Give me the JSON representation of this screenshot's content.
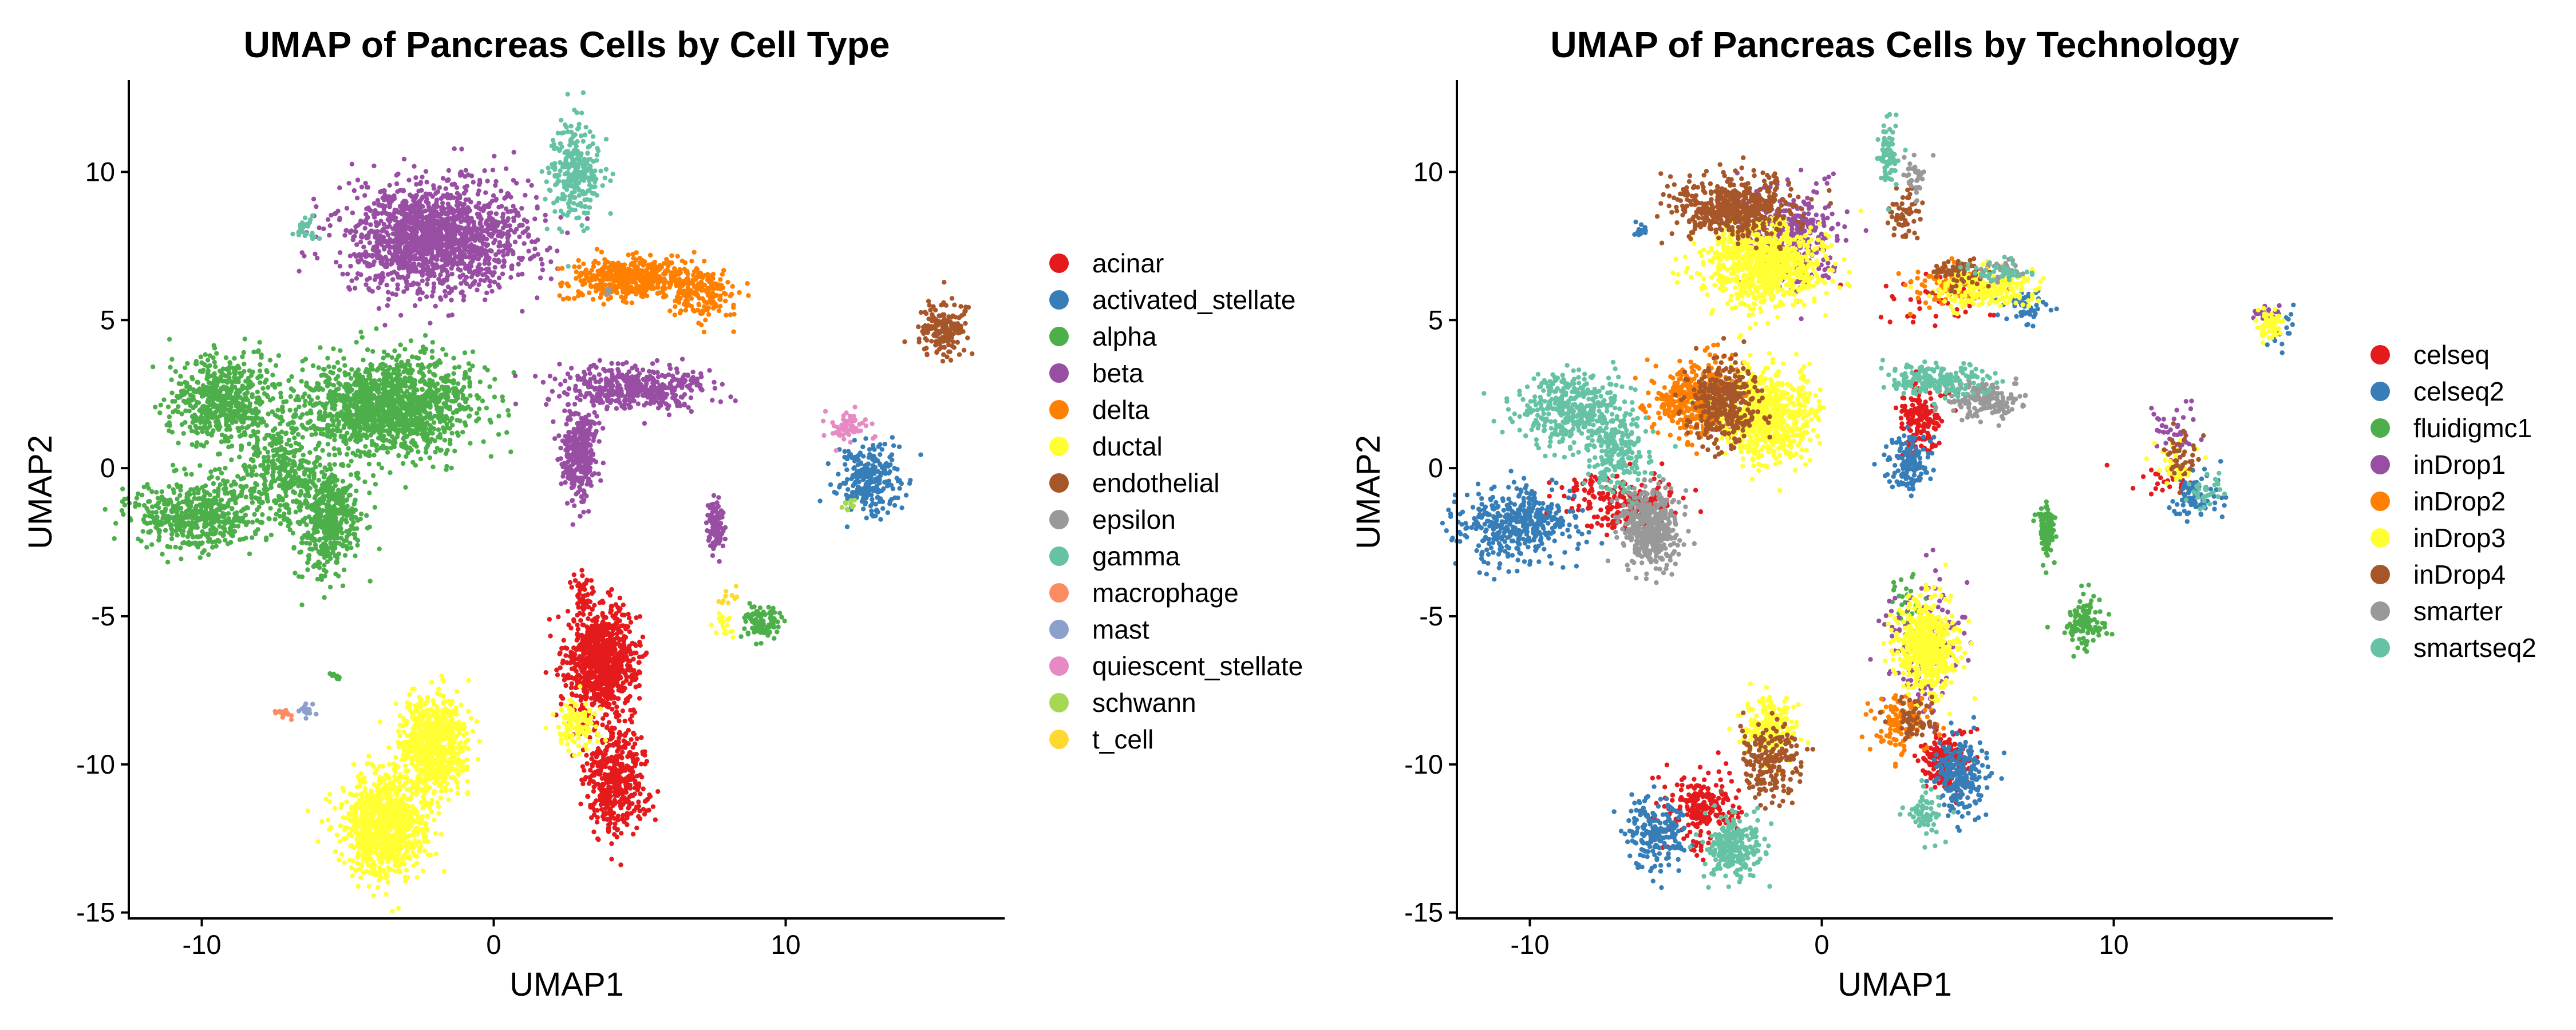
{
  "chart_data": [
    {
      "type": "scatter",
      "title": "UMAP of Pancreas Cells by Cell Type",
      "xlabel": "UMAP1",
      "ylabel": "UMAP2",
      "xlim": [
        -12.5,
        17.5
      ],
      "ylim": [
        -15.2,
        13.1
      ],
      "xticks": [
        -10,
        0,
        10
      ],
      "yticks": [
        -15,
        -10,
        -5,
        0,
        5,
        10
      ],
      "grid": false,
      "legend_placement": "right",
      "series": [
        {
          "name": "acinar",
          "color": "#E41A1C",
          "clusters": [
            {
              "x": 3.7,
              "y": -6.5,
              "sx": 0.6,
              "sy": 0.9,
              "n": 900
            },
            {
              "x": 4.2,
              "y": -10.5,
              "sx": 0.55,
              "sy": 0.9,
              "n": 450
            },
            {
              "x": 3.0,
              "y": -4.2,
              "sx": 0.2,
              "sy": 0.35,
              "n": 40
            }
          ]
        },
        {
          "name": "activated_stellate",
          "color": "#377EB8",
          "clusters": [
            {
              "x": 12.9,
              "y": -0.4,
              "sx": 0.55,
              "sy": 0.6,
              "n": 260
            }
          ]
        },
        {
          "name": "alpha",
          "color": "#4DAF4A",
          "clusters": [
            {
              "x": -3.6,
              "y": 2.1,
              "sx": 1.4,
              "sy": 0.8,
              "n": 1400
            },
            {
              "x": -9.3,
              "y": 2.3,
              "sx": 0.9,
              "sy": 0.7,
              "n": 550
            },
            {
              "x": -7.4,
              "y": 0.1,
              "sx": 0.8,
              "sy": 1.0,
              "n": 350
            },
            {
              "x": -10.2,
              "y": -1.6,
              "sx": 1.0,
              "sy": 0.6,
              "n": 500
            },
            {
              "x": -5.7,
              "y": -1.7,
              "sx": 0.6,
              "sy": 0.9,
              "n": 500
            },
            {
              "x": 9.2,
              "y": -5.2,
              "sx": 0.3,
              "sy": 0.3,
              "n": 100
            },
            {
              "x": -5.4,
              "y": -7.0,
              "sx": 0.08,
              "sy": 0.08,
              "n": 10
            }
          ]
        },
        {
          "name": "beta",
          "color": "#984EA3",
          "clusters": [
            {
              "x": -2.0,
              "y": 7.8,
              "sx": 1.5,
              "sy": 0.9,
              "n": 1600
            },
            {
              "x": 4.8,
              "y": 2.7,
              "sx": 1.3,
              "sy": 0.35,
              "n": 450
            },
            {
              "x": 2.9,
              "y": 0.5,
              "sx": 0.3,
              "sy": 0.8,
              "n": 350
            },
            {
              "x": 7.6,
              "y": -1.9,
              "sx": 0.15,
              "sy": 0.45,
              "n": 100
            }
          ]
        },
        {
          "name": "delta",
          "color": "#FF7F00",
          "clusters": [
            {
              "x": 4.9,
              "y": 6.4,
              "sx": 1.1,
              "sy": 0.35,
              "n": 500
            },
            {
              "x": 7.2,
              "y": 5.9,
              "sx": 0.6,
              "sy": 0.5,
              "n": 150
            }
          ]
        },
        {
          "name": "ductal",
          "color": "#FFFF33",
          "clusters": [
            {
              "x": -3.7,
              "y": -12.1,
              "sx": 0.75,
              "sy": 0.9,
              "n": 950
            },
            {
              "x": -2.1,
              "y": -9.3,
              "sx": 0.55,
              "sy": 0.8,
              "n": 700
            },
            {
              "x": 2.8,
              "y": -8.6,
              "sx": 0.4,
              "sy": 0.4,
              "n": 120
            },
            {
              "x": 7.8,
              "y": -5.3,
              "sx": 0.2,
              "sy": 0.2,
              "n": 20
            }
          ]
        },
        {
          "name": "endothelial",
          "color": "#A65628",
          "clusters": [
            {
              "x": 15.4,
              "y": 4.7,
              "sx": 0.45,
              "sy": 0.45,
              "n": 180
            }
          ]
        },
        {
          "name": "epsilon",
          "color": "#999999",
          "clusters": [
            {
              "x": 3.9,
              "y": 6.0,
              "sx": 0.1,
              "sy": 0.1,
              "n": 6
            }
          ]
        },
        {
          "name": "gamma",
          "color": "#66C2A5",
          "clusters": [
            {
              "x": 2.8,
              "y": 10.0,
              "sx": 0.45,
              "sy": 0.8,
              "n": 280
            },
            {
              "x": -6.4,
              "y": 8.1,
              "sx": 0.25,
              "sy": 0.2,
              "n": 30
            }
          ]
        },
        {
          "name": "macrophage",
          "color": "#FC8D62",
          "clusters": [
            {
              "x": -7.2,
              "y": -8.3,
              "sx": 0.15,
              "sy": 0.1,
              "n": 15
            }
          ]
        },
        {
          "name": "mast",
          "color": "#8DA0CB",
          "clusters": [
            {
              "x": -6.4,
              "y": -8.2,
              "sx": 0.15,
              "sy": 0.15,
              "n": 15
            }
          ]
        },
        {
          "name": "quiescent_stellate",
          "color": "#E78AC3",
          "clusters": [
            {
              "x": 12.2,
              "y": 1.4,
              "sx": 0.35,
              "sy": 0.25,
              "n": 60
            }
          ]
        },
        {
          "name": "schwann",
          "color": "#A6D854",
          "clusters": [
            {
              "x": 12.2,
              "y": -1.2,
              "sx": 0.15,
              "sy": 0.1,
              "n": 12
            }
          ]
        },
        {
          "name": "t_cell",
          "color": "#FFD92F",
          "clusters": [
            {
              "x": 8.0,
              "y": -4.4,
              "sx": 0.15,
              "sy": 0.15,
              "n": 10
            }
          ]
        }
      ]
    },
    {
      "type": "scatter",
      "title": "UMAP of Pancreas Cells by Technology",
      "xlabel": "UMAP1",
      "ylabel": "UMAP2",
      "xlim": [
        -12.5,
        17.5
      ],
      "ylim": [
        -15.2,
        13.1
      ],
      "xticks": [
        -10,
        0,
        10
      ],
      "yticks": [
        -15,
        -10,
        -5,
        0,
        5,
        10
      ],
      "grid": false,
      "legend_placement": "right",
      "series": [
        {
          "name": "celseq",
          "color": "#E41A1C",
          "clusters": [
            {
              "x": -6.9,
              "y": -1.1,
              "sx": 1.0,
              "sy": 0.5,
              "n": 220
            },
            {
              "x": 3.4,
              "y": 1.6,
              "sx": 0.35,
              "sy": 0.6,
              "n": 150
            },
            {
              "x": -4.1,
              "y": -11.5,
              "sx": 0.6,
              "sy": 0.6,
              "n": 220
            },
            {
              "x": 4.2,
              "y": -9.9,
              "sx": 0.4,
              "sy": 0.5,
              "n": 200
            },
            {
              "x": 11.6,
              "y": -0.4,
              "sx": 0.6,
              "sy": 0.4,
              "n": 30
            },
            {
              "x": 3.8,
              "y": 5.7,
              "sx": 1.6,
              "sy": 0.4,
              "n": 45
            }
          ]
        },
        {
          "name": "celseq2",
          "color": "#377EB8",
          "clusters": [
            {
              "x": -10.4,
              "y": -1.9,
              "sx": 1.0,
              "sy": 0.6,
              "n": 420
            },
            {
              "x": 3.0,
              "y": 0.1,
              "sx": 0.35,
              "sy": 0.5,
              "n": 150
            },
            {
              "x": -5.7,
              "y": -12.3,
              "sx": 0.5,
              "sy": 0.6,
              "n": 200
            },
            {
              "x": 4.7,
              "y": -10.4,
              "sx": 0.45,
              "sy": 0.7,
              "n": 220
            },
            {
              "x": 12.8,
              "y": -0.9,
              "sx": 0.4,
              "sy": 0.4,
              "n": 80
            },
            {
              "x": 7.0,
              "y": 5.5,
              "sx": 0.5,
              "sy": 0.3,
              "n": 50
            },
            {
              "x": -6.3,
              "y": 8.1,
              "sx": 0.15,
              "sy": 0.15,
              "n": 15
            },
            {
              "x": 15.6,
              "y": 4.6,
              "sx": 0.3,
              "sy": 0.3,
              "n": 20
            }
          ]
        },
        {
          "name": "fluidigmc1",
          "color": "#4DAF4A",
          "clusters": [
            {
              "x": 7.7,
              "y": -2.0,
              "sx": 0.12,
              "sy": 0.5,
              "n": 110
            },
            {
              "x": 9.0,
              "y": -5.2,
              "sx": 0.35,
              "sy": 0.4,
              "n": 110
            },
            {
              "x": 3.0,
              "y": -4.4,
              "sx": 0.3,
              "sy": 0.5,
              "n": 30
            }
          ]
        },
        {
          "name": "inDrop1",
          "color": "#984EA3",
          "clusters": [
            {
              "x": -1.0,
              "y": 7.8,
              "sx": 0.8,
              "sy": 0.8,
              "n": 350
            },
            {
              "x": 3.6,
              "y": -6.0,
              "sx": 0.6,
              "sy": 1.0,
              "n": 160
            },
            {
              "x": 12.2,
              "y": 1.4,
              "sx": 0.4,
              "sy": 0.4,
              "n": 40
            },
            {
              "x": 15.2,
              "y": 5.2,
              "sx": 0.3,
              "sy": 0.2,
              "n": 20
            }
          ]
        },
        {
          "name": "inDrop2",
          "color": "#FF7F00",
          "clusters": [
            {
              "x": -4.2,
              "y": 2.3,
              "sx": 0.8,
              "sy": 0.6,
              "n": 500
            },
            {
              "x": 2.7,
              "y": -8.5,
              "sx": 0.5,
              "sy": 0.5,
              "n": 120
            },
            {
              "x": 4.3,
              "y": 6.2,
              "sx": 0.7,
              "sy": 0.35,
              "n": 100
            }
          ]
        },
        {
          "name": "inDrop3",
          "color": "#FFFF33",
          "clusters": [
            {
              "x": -2.0,
              "y": 6.9,
              "sx": 1.0,
              "sy": 0.7,
              "n": 900
            },
            {
              "x": -1.9,
              "y": 1.8,
              "sx": 0.8,
              "sy": 0.8,
              "n": 700
            },
            {
              "x": 3.6,
              "y": -6.0,
              "sx": 0.5,
              "sy": 0.8,
              "n": 600
            },
            {
              "x": -1.8,
              "y": -8.7,
              "sx": 0.4,
              "sy": 0.5,
              "n": 200
            },
            {
              "x": 5.5,
              "y": 6.1,
              "sx": 0.8,
              "sy": 0.35,
              "n": 250
            },
            {
              "x": 12.0,
              "y": 0.1,
              "sx": 0.35,
              "sy": 0.4,
              "n": 40
            },
            {
              "x": 15.3,
              "y": 4.8,
              "sx": 0.25,
              "sy": 0.3,
              "n": 60
            }
          ]
        },
        {
          "name": "inDrop4",
          "color": "#A65628",
          "clusters": [
            {
              "x": -3.0,
              "y": 8.8,
              "sx": 1.0,
              "sy": 0.5,
              "n": 500
            },
            {
              "x": -3.4,
              "y": 2.2,
              "sx": 0.6,
              "sy": 0.7,
              "n": 350
            },
            {
              "x": -1.7,
              "y": -9.9,
              "sx": 0.5,
              "sy": 0.6,
              "n": 200
            },
            {
              "x": 2.8,
              "y": 8.6,
              "sx": 0.25,
              "sy": 0.5,
              "n": 60
            },
            {
              "x": 4.6,
              "y": 6.6,
              "sx": 0.5,
              "sy": 0.3,
              "n": 60
            },
            {
              "x": 12.4,
              "y": 0.4,
              "sx": 0.3,
              "sy": 0.5,
              "n": 40
            },
            {
              "x": 3.2,
              "y": -8.5,
              "sx": 0.4,
              "sy": 0.4,
              "n": 60
            }
          ]
        },
        {
          "name": "smarter",
          "color": "#999999",
          "clusters": [
            {
              "x": -5.9,
              "y": -2.0,
              "sx": 0.5,
              "sy": 0.7,
              "n": 450
            },
            {
              "x": 5.5,
              "y": 2.3,
              "sx": 0.6,
              "sy": 0.3,
              "n": 170
            },
            {
              "x": 3.2,
              "y": 9.8,
              "sx": 0.2,
              "sy": 0.3,
              "n": 40
            },
            {
              "x": 6.2,
              "y": 6.7,
              "sx": 0.4,
              "sy": 0.2,
              "n": 30
            }
          ]
        },
        {
          "name": "smartseq2",
          "color": "#66C2A5",
          "clusters": [
            {
              "x": -8.5,
              "y": 2.0,
              "sx": 0.9,
              "sy": 0.6,
              "n": 400
            },
            {
              "x": -7.0,
              "y": 0.5,
              "sx": 0.5,
              "sy": 0.7,
              "n": 200
            },
            {
              "x": 4.0,
              "y": 3.0,
              "sx": 0.8,
              "sy": 0.3,
              "n": 200
            },
            {
              "x": 2.3,
              "y": 10.6,
              "sx": 0.15,
              "sy": 0.6,
              "n": 80
            },
            {
              "x": -3.0,
              "y": -12.8,
              "sx": 0.5,
              "sy": 0.5,
              "n": 250
            },
            {
              "x": 3.5,
              "y": -11.7,
              "sx": 0.3,
              "sy": 0.4,
              "n": 70
            },
            {
              "x": 6.0,
              "y": 6.6,
              "sx": 0.5,
              "sy": 0.2,
              "n": 40
            },
            {
              "x": 13.2,
              "y": -0.8,
              "sx": 0.3,
              "sy": 0.3,
              "n": 30
            }
          ]
        }
      ]
    }
  ]
}
